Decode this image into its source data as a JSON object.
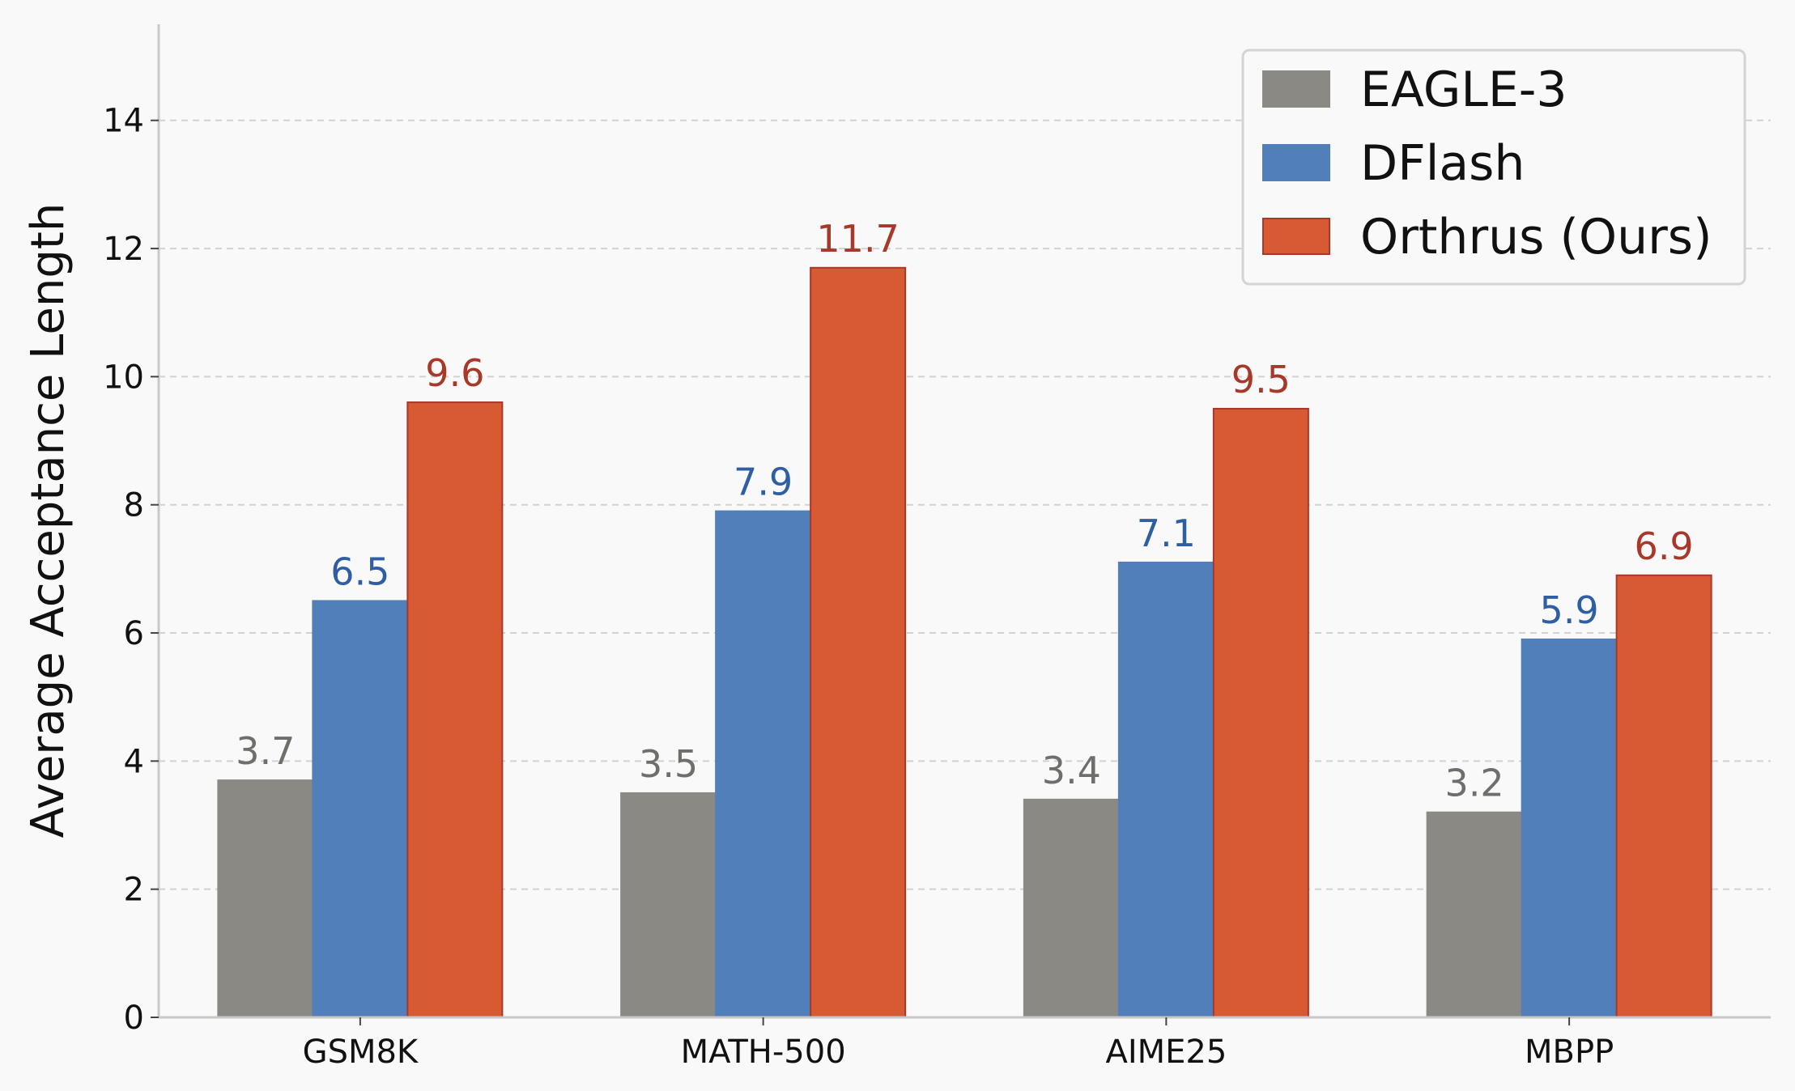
{
  "chart_data": {
    "type": "bar",
    "title": "",
    "xlabel": "",
    "ylabel": "Average Acceptance Length",
    "ylim": [
      0,
      15.5
    ],
    "yticks": [
      0,
      2,
      4,
      6,
      8,
      10,
      12,
      14
    ],
    "grid": "horizontal dashed",
    "legend_position": "top-right",
    "categories": [
      "GSM8K",
      "MATH-500",
      "AIME25",
      "MBPP"
    ],
    "series": [
      {
        "name": "EAGLE-3",
        "values": [
          3.7,
          3.5,
          3.4,
          3.2
        ],
        "color": "#8a8984",
        "label_color": "#6e6e6b",
        "edge_color": "#8a8984"
      },
      {
        "name": "DFlash",
        "values": [
          6.5,
          7.9,
          7.1,
          5.9
        ],
        "color": "#517fba",
        "label_color": "#2f5fa3",
        "edge_color": "#517fba"
      },
      {
        "name": "Orthrus (Ours)",
        "values": [
          9.6,
          11.7,
          9.5,
          6.9
        ],
        "color": "#d75a32",
        "label_color": "#a8382a",
        "edge_color": "#a8382a"
      }
    ]
  }
}
